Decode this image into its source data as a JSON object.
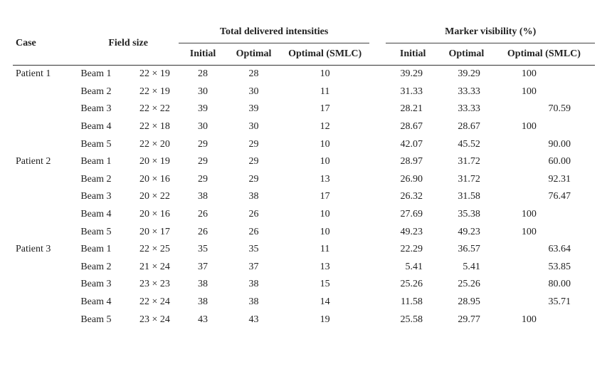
{
  "table": {
    "headers": {
      "case": "Case",
      "field_size": "Field size",
      "group_total": "Total delivered intensities",
      "group_marker": "Marker visibility (%)",
      "initial": "Initial",
      "optimal": "Optimal",
      "optimal_smlc": "Optimal (SMLC)"
    },
    "rows": [
      {
        "case": "Patient 1",
        "beam": "Beam 1",
        "size": "22 × 19",
        "t_init": "28",
        "t_opt": "28",
        "t_smlc": "10",
        "m_init": "39.29",
        "m_opt": "39.29",
        "m_smlc": "100"
      },
      {
        "case": "",
        "beam": "Beam 2",
        "size": "22 × 19",
        "t_init": "30",
        "t_opt": "30",
        "t_smlc": "11",
        "m_init": "31.33",
        "m_opt": "33.33",
        "m_smlc": "100"
      },
      {
        "case": "",
        "beam": "Beam 3",
        "size": "22 × 22",
        "t_init": "39",
        "t_opt": "39",
        "t_smlc": "17",
        "m_init": "28.21",
        "m_opt": "33.33",
        "m_smlc": "70.59"
      },
      {
        "case": "",
        "beam": "Beam 4",
        "size": "22 × 18",
        "t_init": "30",
        "t_opt": "30",
        "t_smlc": "12",
        "m_init": "28.67",
        "m_opt": "28.67",
        "m_smlc": "100"
      },
      {
        "case": "",
        "beam": "Beam 5",
        "size": "22 × 20",
        "t_init": "29",
        "t_opt": "29",
        "t_smlc": "10",
        "m_init": "42.07",
        "m_opt": "45.52",
        "m_smlc": "90.00"
      },
      {
        "case": "Patient 2",
        "beam": "Beam 1",
        "size": "20 × 19",
        "t_init": "29",
        "t_opt": "29",
        "t_smlc": "10",
        "m_init": "28.97",
        "m_opt": "31.72",
        "m_smlc": "60.00"
      },
      {
        "case": "",
        "beam": "Beam 2",
        "size": "20 × 16",
        "t_init": "29",
        "t_opt": "29",
        "t_smlc": "13",
        "m_init": "26.90",
        "m_opt": "31.72",
        "m_smlc": "92.31"
      },
      {
        "case": "",
        "beam": "Beam 3",
        "size": "20 × 22",
        "t_init": "38",
        "t_opt": "38",
        "t_smlc": "17",
        "m_init": "26.32",
        "m_opt": "31.58",
        "m_smlc": "76.47"
      },
      {
        "case": "",
        "beam": "Beam 4",
        "size": "20 × 16",
        "t_init": "26",
        "t_opt": "26",
        "t_smlc": "10",
        "m_init": "27.69",
        "m_opt": "35.38",
        "m_smlc": "100"
      },
      {
        "case": "",
        "beam": "Beam 5",
        "size": "20 × 17",
        "t_init": "26",
        "t_opt": "26",
        "t_smlc": "10",
        "m_init": "49.23",
        "m_opt": "49.23",
        "m_smlc": "100"
      },
      {
        "case": "Patient 3",
        "beam": "Beam 1",
        "size": "22 × 25",
        "t_init": "35",
        "t_opt": "35",
        "t_smlc": "11",
        "m_init": "22.29",
        "m_opt": "36.57",
        "m_smlc": "63.64"
      },
      {
        "case": "",
        "beam": "Beam 2",
        "size": "21 × 24",
        "t_init": "37",
        "t_opt": "37",
        "t_smlc": "13",
        "m_init": "5.41",
        "m_opt": "5.41",
        "m_smlc": "53.85"
      },
      {
        "case": "",
        "beam": "Beam 3",
        "size": "23 × 23",
        "t_init": "38",
        "t_opt": "38",
        "t_smlc": "15",
        "m_init": "25.26",
        "m_opt": "25.26",
        "m_smlc": "80.00"
      },
      {
        "case": "",
        "beam": "Beam 4",
        "size": "22 × 24",
        "t_init": "38",
        "t_opt": "38",
        "t_smlc": "14",
        "m_init": "11.58",
        "m_opt": "28.95",
        "m_smlc": "35.71"
      },
      {
        "case": "",
        "beam": "Beam 5",
        "size": "23 × 24",
        "t_init": "43",
        "t_opt": "43",
        "t_smlc": "19",
        "m_init": "25.58",
        "m_opt": "29.77",
        "m_smlc": "100"
      }
    ]
  }
}
